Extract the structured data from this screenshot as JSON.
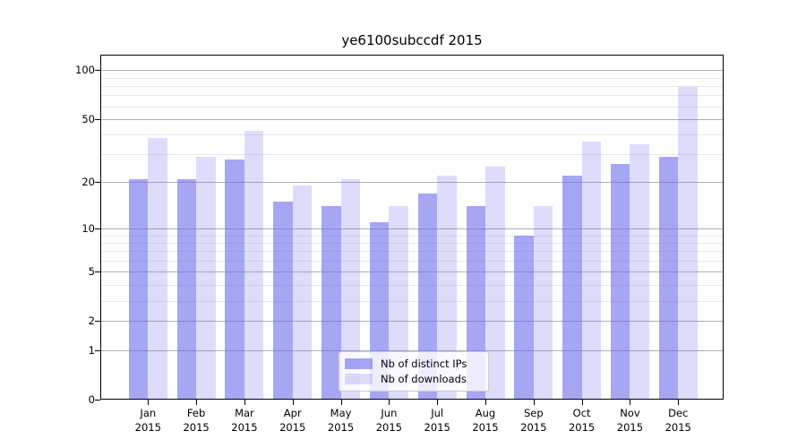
{
  "title": "ye6100subccdf 2015",
  "chart_data": {
    "type": "bar",
    "title": "ye6100subccdf 2015",
    "categories": [
      "Jan",
      "Feb",
      "Mar",
      "Apr",
      "May",
      "Jun",
      "Jul",
      "Aug",
      "Sep",
      "Oct",
      "Nov",
      "Dec"
    ],
    "category_year": "2015",
    "series": [
      {
        "name": "Nb of distinct IPs",
        "color": "rgba(102,102,235,0.58)",
        "values": [
          21,
          21,
          28,
          15,
          14,
          11,
          17,
          14,
          9,
          22,
          26,
          29
        ]
      },
      {
        "name": "Nb of downloads",
        "color": "rgba(102,102,235,0.22)",
        "values": [
          38,
          29,
          42,
          19,
          21,
          14,
          22,
          25,
          14,
          36,
          35,
          79
        ]
      }
    ],
    "xlabel": "",
    "ylabel": "",
    "yscale": "log1p",
    "ylim": [
      0,
      124
    ],
    "yticks_major": [
      0,
      1,
      2,
      5,
      10,
      20,
      50,
      100
    ],
    "yticks_minor": [
      3,
      4,
      6,
      7,
      8,
      9,
      30,
      40,
      60,
      70,
      80,
      90
    ],
    "grid": true,
    "legend_position": "lower center",
    "colors": {
      "grid_major": "#b0b0b0",
      "grid_minor": "#e8e8e8",
      "spine": "#000000",
      "text": "#000000",
      "legend_border": "#cccccc",
      "legend_bg": "rgba(255,255,255,0.8)",
      "background": "#ffffff"
    }
  }
}
